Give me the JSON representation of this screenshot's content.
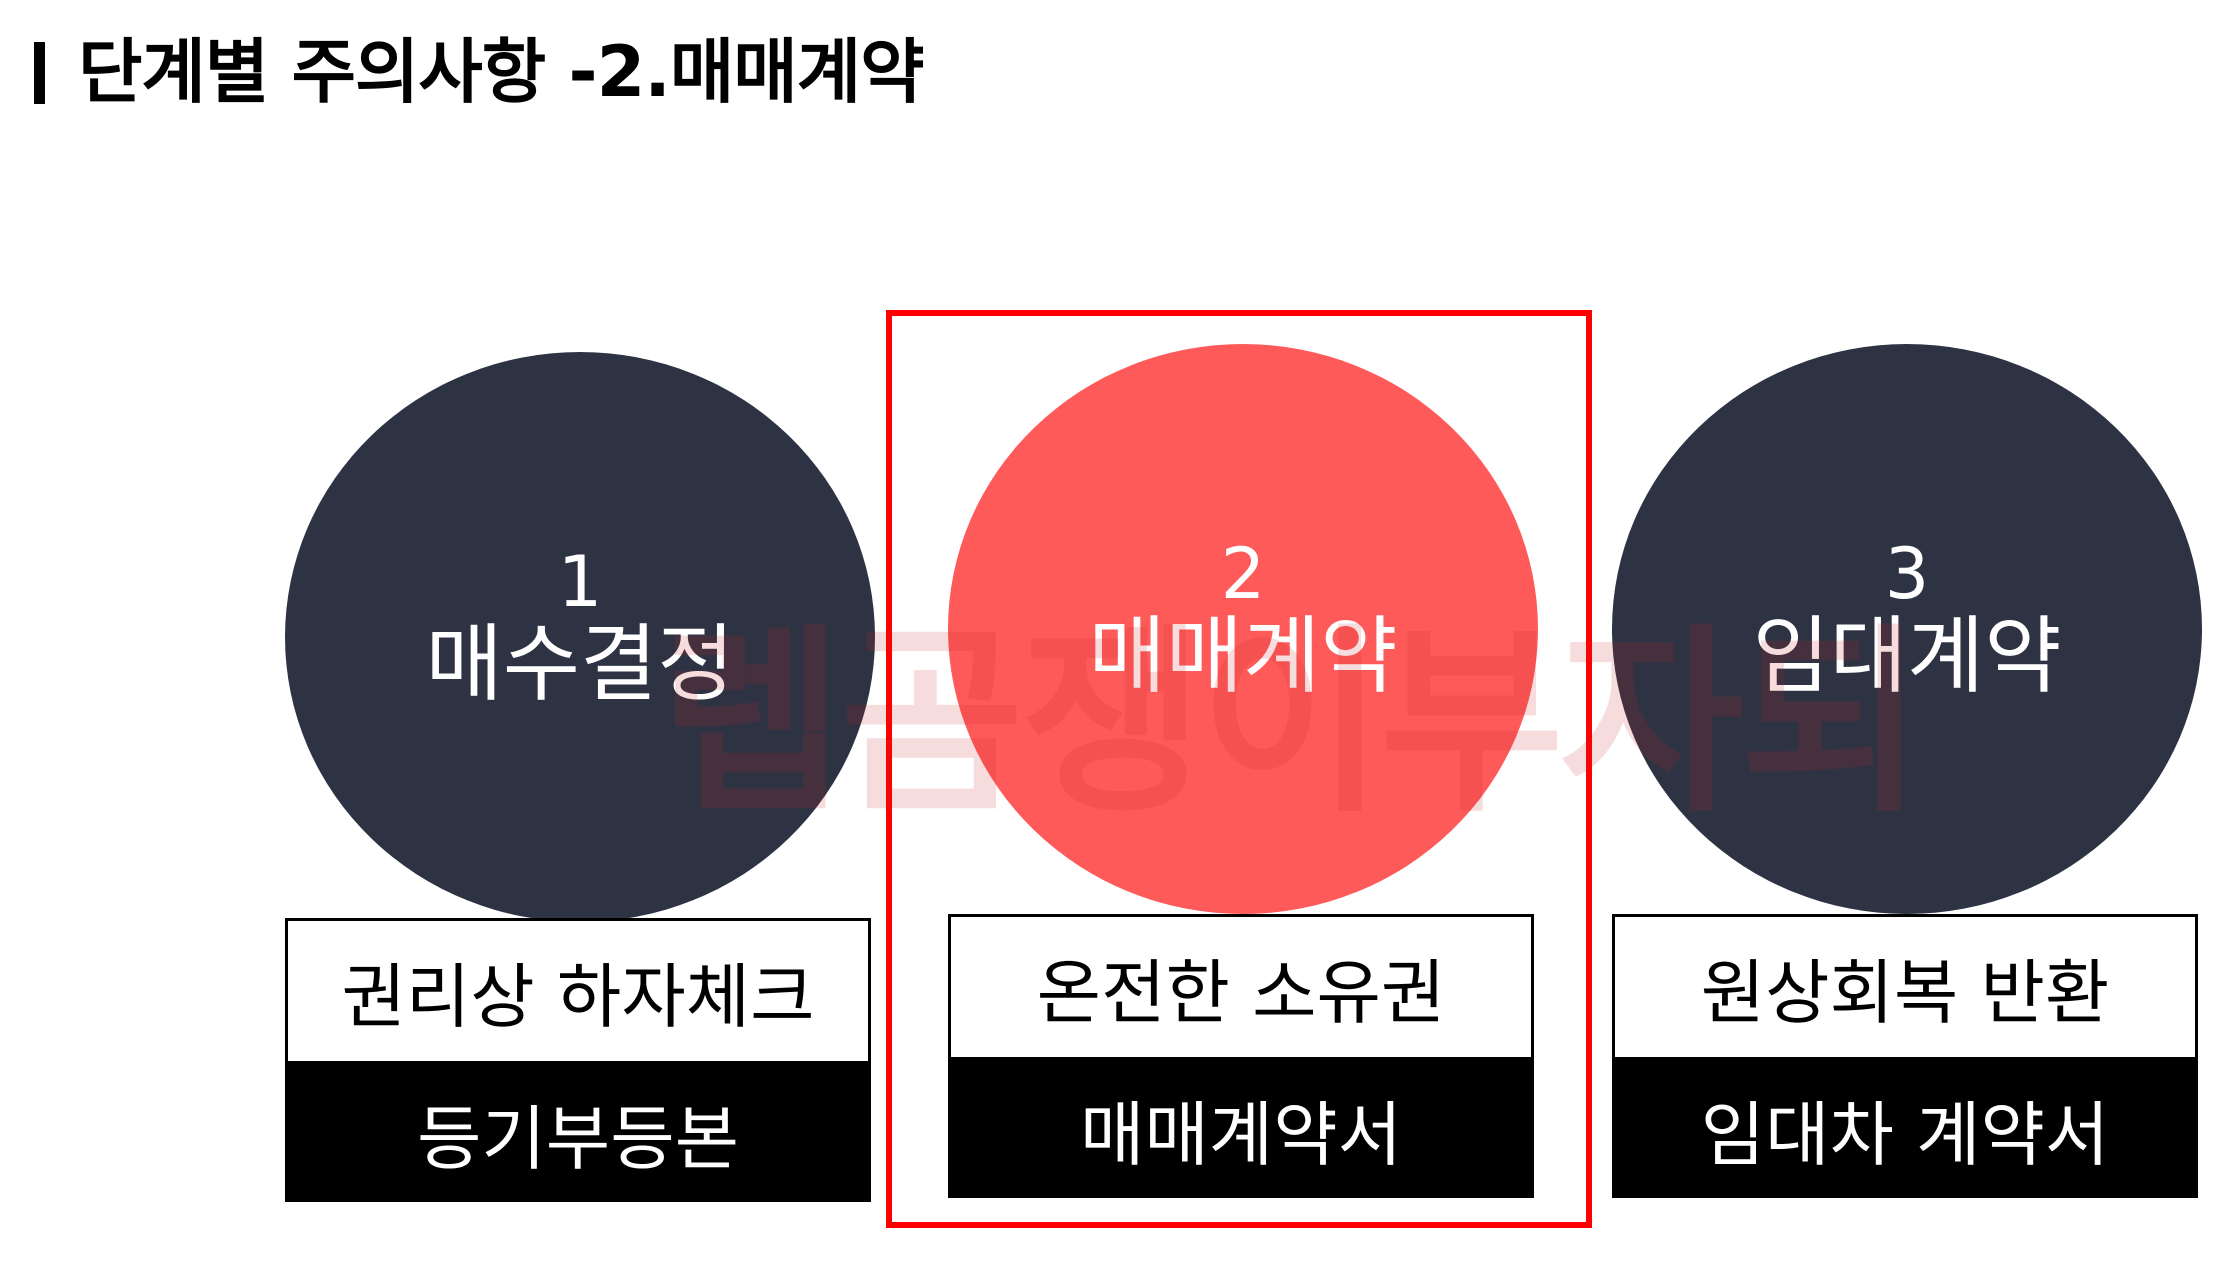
{
  "title": "단계별 주의사항 -2.매매계약",
  "colors": {
    "dark": "#2e3343",
    "accent": "#ff5a5a",
    "highlight_border": "#ff0000"
  },
  "steps": [
    {
      "number": "1",
      "label": "매수결정",
      "top_text": "권리상 하자체크",
      "bottom_text": "등기부등본"
    },
    {
      "number": "2",
      "label": "매매계약",
      "top_text": "온전한 소유권",
      "bottom_text": "매매계약서"
    },
    {
      "number": "3",
      "label": "임대계약",
      "top_text": "원상회복 반환",
      "bottom_text": "임대차 계약서"
    }
  ],
  "watermark": "렙곰쟁이부자되"
}
